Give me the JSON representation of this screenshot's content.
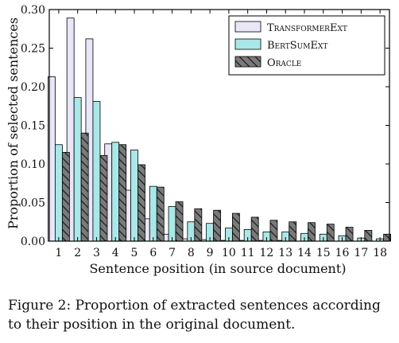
{
  "chart_data": {
    "type": "bar",
    "xlabel": "Sentence position (in source document)",
    "ylabel": "Proportion of selected sentences",
    "ylim": [
      0,
      0.3
    ],
    "yticks": [
      "0.00",
      "0.05",
      "0.10",
      "0.15",
      "0.20",
      "0.25",
      "0.30"
    ],
    "categories": [
      "1",
      "2",
      "3",
      "4",
      "5",
      "6",
      "7",
      "8",
      "9",
      "10",
      "11",
      "12",
      "13",
      "14",
      "15",
      "16",
      "17",
      "18"
    ],
    "legend_position": "top-right",
    "series": [
      {
        "name": "TransformerExt",
        "color": "#e9e6f7",
        "pattern": "none",
        "values": [
          0.213,
          0.289,
          0.262,
          0.126,
          0.066,
          0.029,
          0.009,
          0.003,
          0.002,
          0.001,
          0.001,
          0.001,
          0.001,
          0.0,
          0.0,
          0.0,
          0.0,
          0.0
        ]
      },
      {
        "name": "BertSumExt",
        "color": "#a8e8e8",
        "pattern": "none",
        "values": [
          0.125,
          0.186,
          0.181,
          0.128,
          0.118,
          0.071,
          0.045,
          0.025,
          0.023,
          0.017,
          0.015,
          0.012,
          0.012,
          0.01,
          0.009,
          0.007,
          0.004,
          0.003
        ]
      },
      {
        "name": "Oracle",
        "color": "#7a7a7a",
        "pattern": "diagonal",
        "values": [
          0.115,
          0.14,
          0.111,
          0.125,
          0.099,
          0.07,
          0.051,
          0.042,
          0.04,
          0.036,
          0.031,
          0.027,
          0.025,
          0.024,
          0.022,
          0.018,
          0.014,
          0.009
        ]
      }
    ]
  },
  "caption": {
    "line1": "Figure 2: Proportion of extracted sentences according",
    "line2": "to their position in the original document."
  }
}
